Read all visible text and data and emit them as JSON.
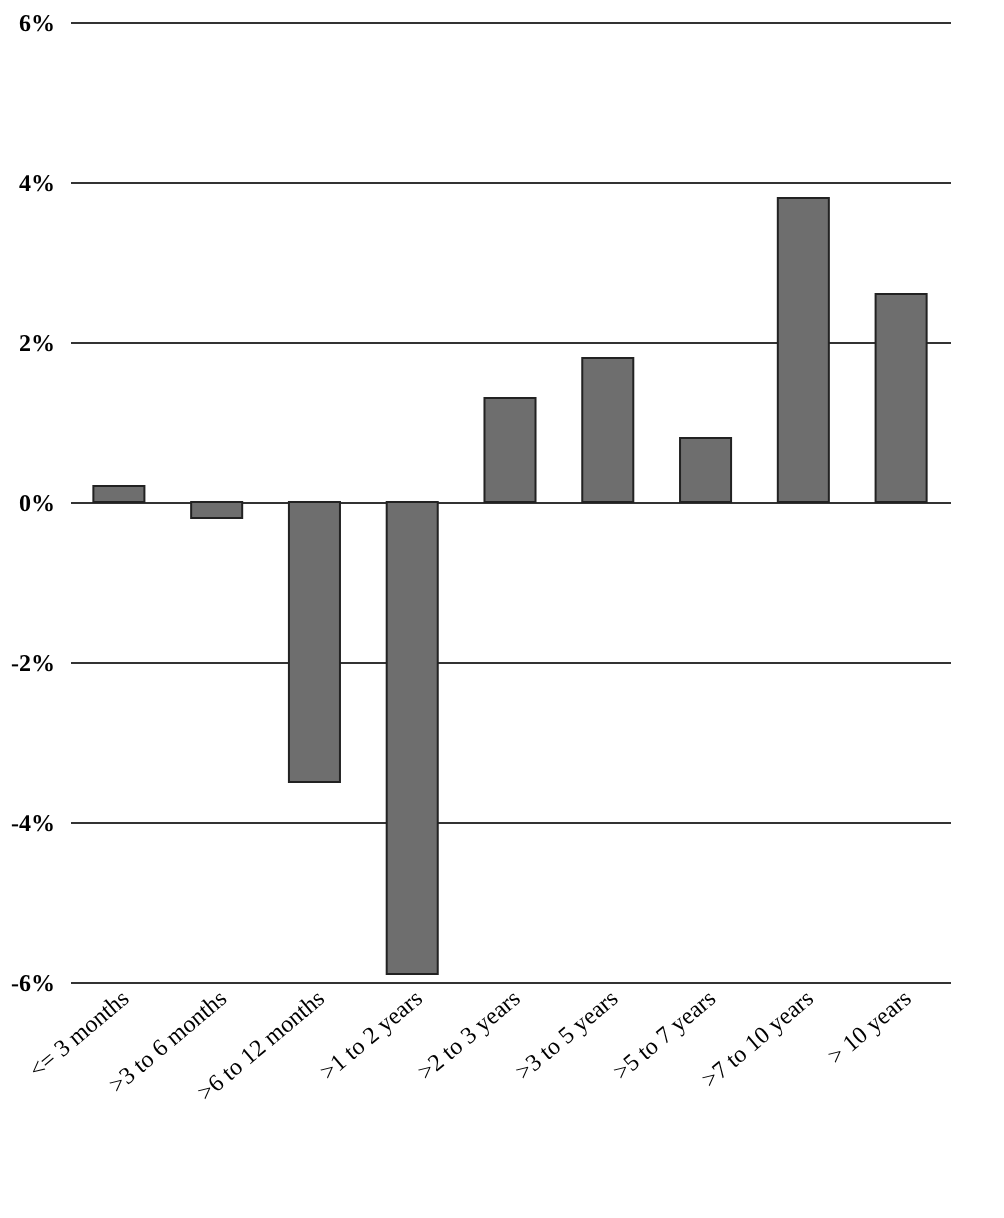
{
  "chart_data": {
    "type": "bar",
    "categories": [
      "<= 3 months",
      ">3 to 6 months",
      ">6 to 12 months",
      ">1 to 2 years",
      ">2 to 3 years",
      ">3 to 5 years",
      ">5 to 7 years",
      ">7 to 10 years",
      "> 10 years"
    ],
    "values": [
      0.2,
      -0.2,
      -3.5,
      -5.9,
      1.3,
      1.8,
      0.8,
      3.8,
      2.6
    ],
    "color": "#6e6e6e",
    "ylim": [
      -6,
      6
    ],
    "yticks": [
      {
        "value": -6,
        "label": "-6%"
      },
      {
        "value": -4,
        "label": "-4%"
      },
      {
        "value": -2,
        "label": "-2%"
      },
      {
        "value": 0,
        "label": "0%"
      },
      {
        "value": 2,
        "label": "2%"
      },
      {
        "value": 4,
        "label": "4%"
      },
      {
        "value": 6,
        "label": "6%"
      }
    ],
    "grid": "y"
  }
}
